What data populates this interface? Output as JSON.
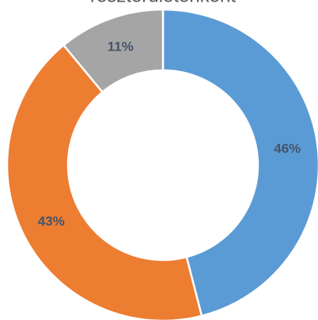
{
  "chart_data": {
    "type": "donut",
    "title": "részterületenként",
    "categories": [
      null,
      null,
      null
    ],
    "values": [
      46,
      43,
      11
    ],
    "value_labels": [
      "46%",
      "43%",
      "11%"
    ],
    "colors": [
      "#5b9bd5",
      "#ed7d31",
      "#a5a5a5"
    ]
  }
}
